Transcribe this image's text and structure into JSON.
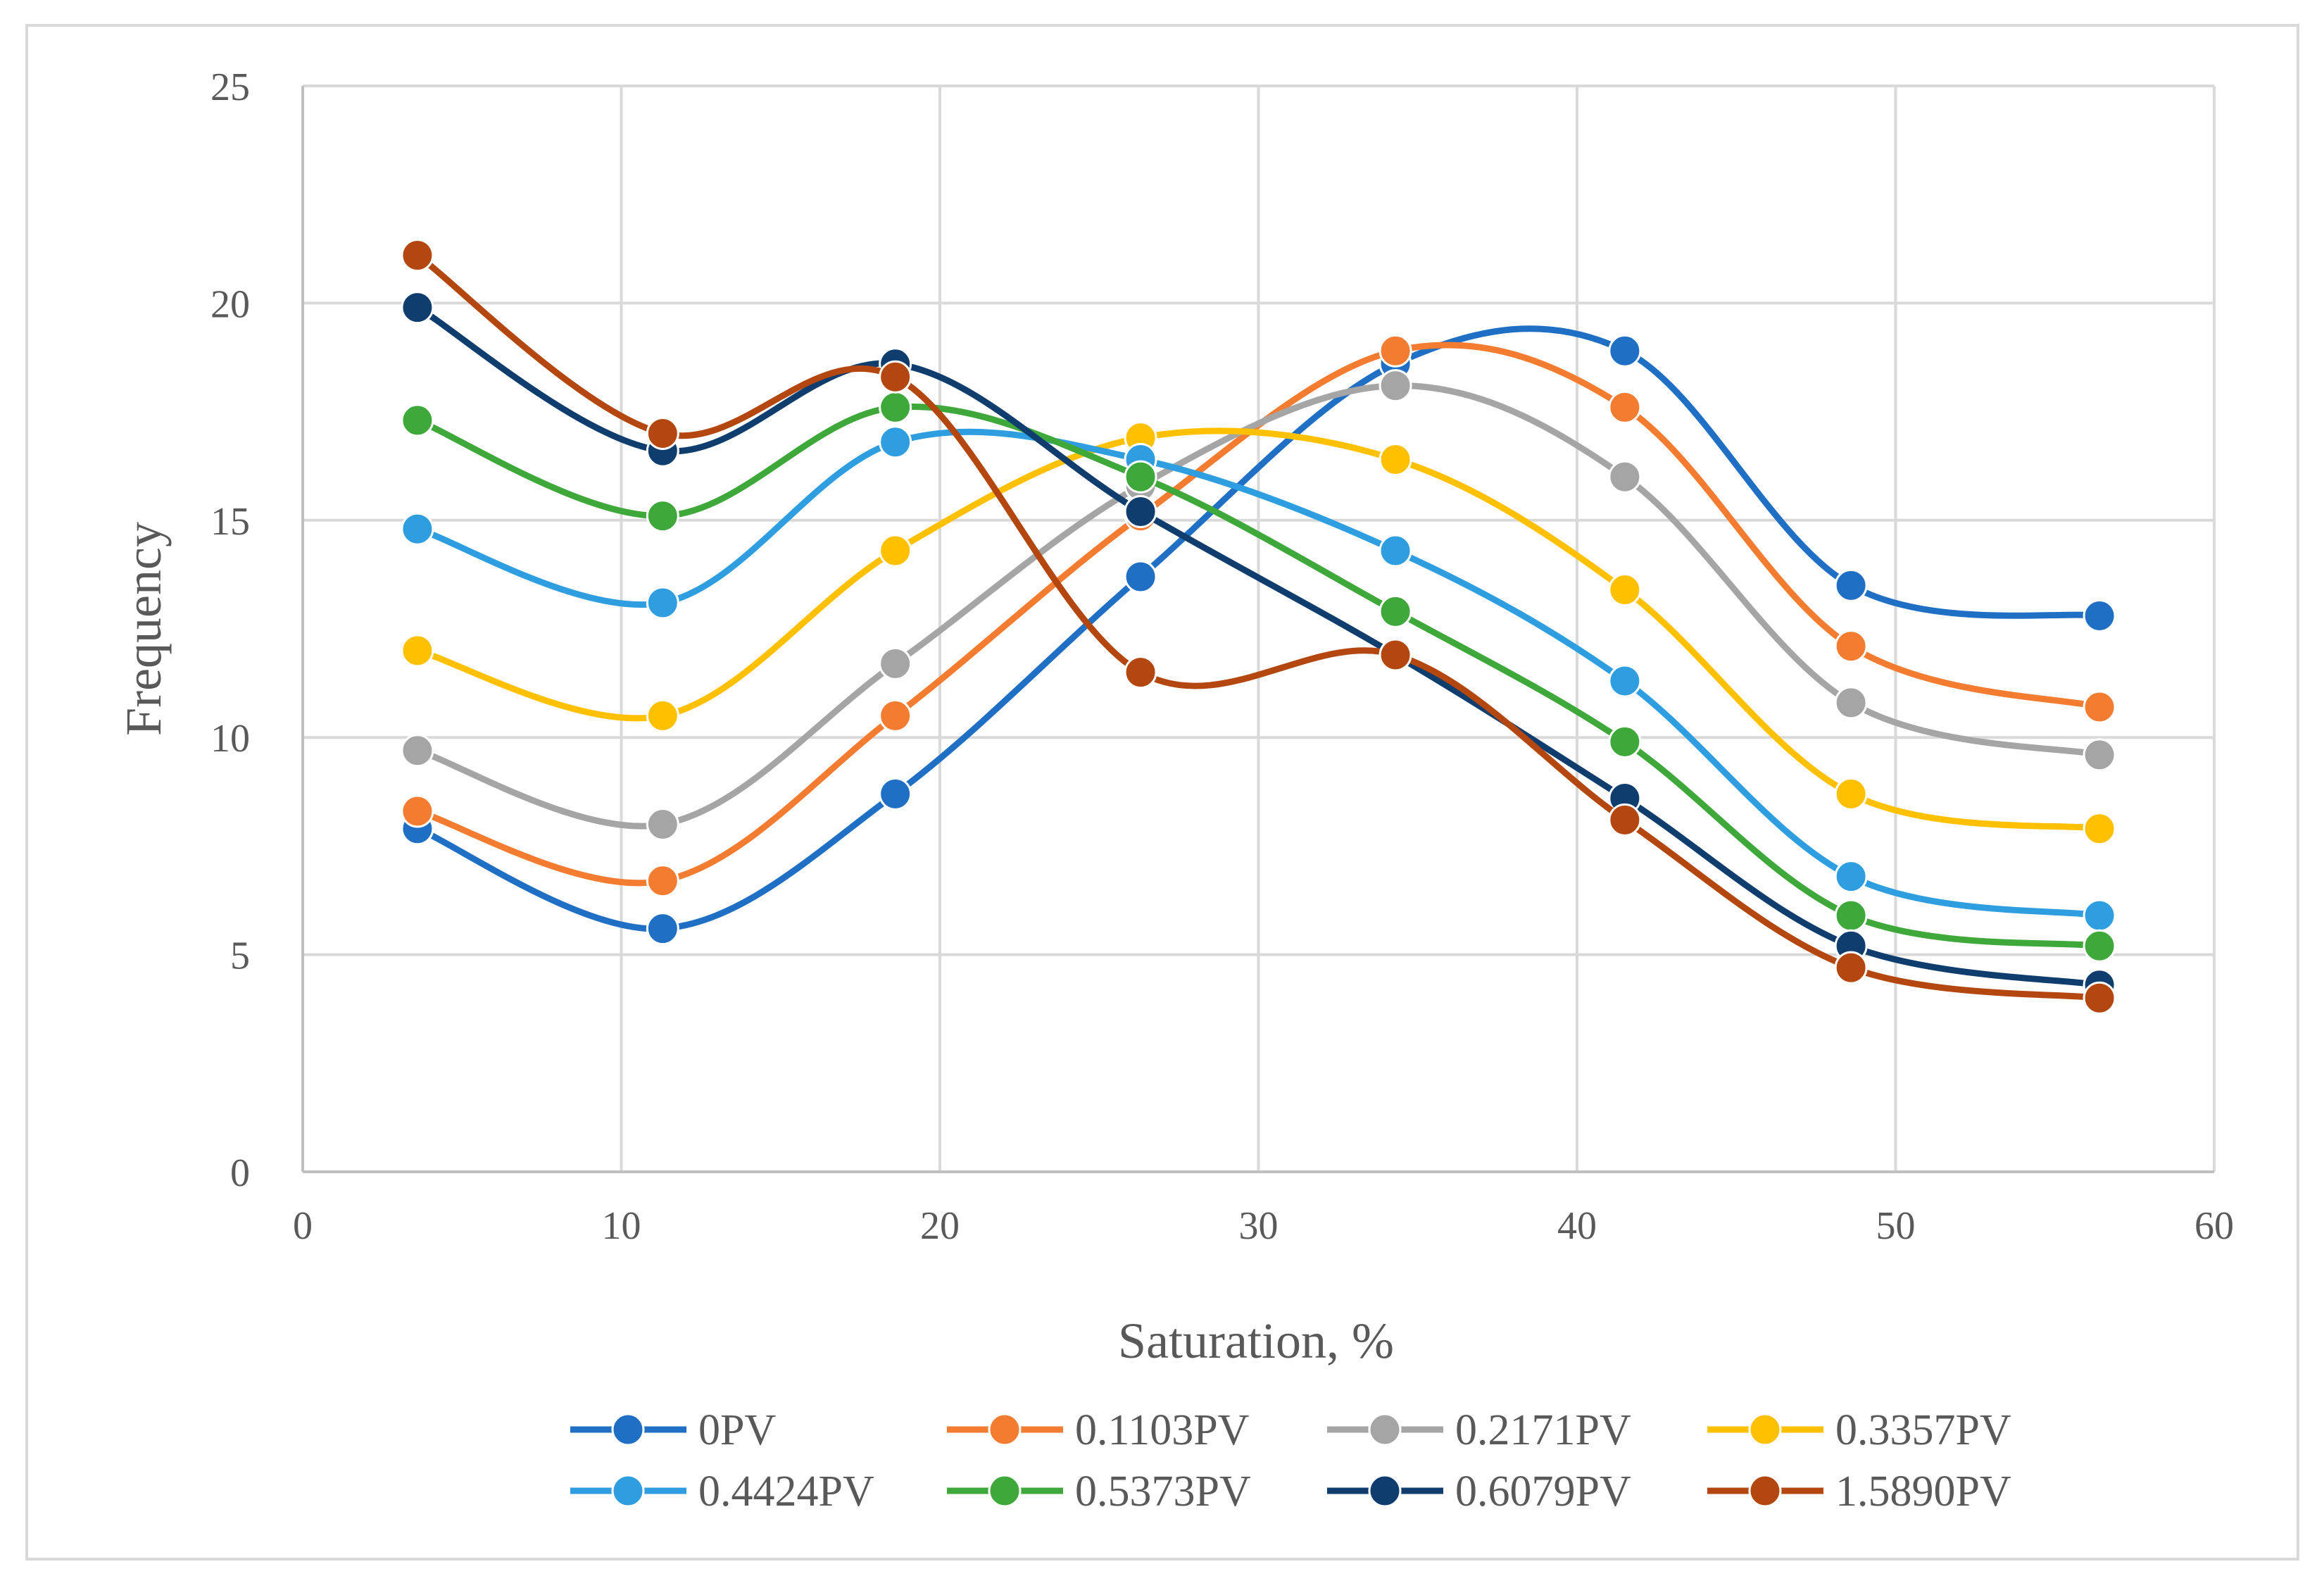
{
  "chart_data": {
    "type": "line",
    "title": "",
    "xlabel": "Saturation, %",
    "ylabel": "Frequency",
    "xlim": [
      0,
      60
    ],
    "ylim": [
      0,
      25
    ],
    "xticks": [
      "0",
      "10",
      "20",
      "30",
      "40",
      "50",
      "60"
    ],
    "yticks": [
      "0",
      "5",
      "10",
      "15",
      "20",
      "25"
    ],
    "grid": true,
    "smooth": true,
    "legend_position": "bottom",
    "x": [
      3.6,
      11.3,
      18.6,
      26.3,
      34.3,
      41.5,
      48.6,
      56.4
    ],
    "series": [
      {
        "name": "0PV",
        "color": "#1f6fc5",
        "values": [
          7.9,
          5.6,
          8.7,
          13.7,
          18.6,
          18.9,
          13.5,
          12.8
        ]
      },
      {
        "name": "0.1103PV",
        "color": "#f47c30",
        "values": [
          8.3,
          6.7,
          10.5,
          15.1,
          18.9,
          17.6,
          12.1,
          10.7
        ]
      },
      {
        "name": "0.2171PV",
        "color": "#a5a5a5",
        "values": [
          9.7,
          8.0,
          11.7,
          15.8,
          18.1,
          16.0,
          10.8,
          9.6
        ]
      },
      {
        "name": "0.3357PV",
        "color": "#ffc000",
        "values": [
          12.0,
          10.5,
          14.3,
          16.9,
          16.4,
          13.4,
          8.7,
          7.9
        ]
      },
      {
        "name": "0.4424PV",
        "color": "#2e9ee0",
        "values": [
          14.8,
          13.1,
          16.8,
          16.4,
          14.3,
          11.3,
          6.8,
          5.9
        ]
      },
      {
        "name": "0.5373PV",
        "color": "#3fa83a",
        "values": [
          17.3,
          15.1,
          17.6,
          16.0,
          12.9,
          9.9,
          5.9,
          5.2
        ]
      },
      {
        "name": "0.6079PV",
        "color": "#0f3d6e",
        "values": [
          19.9,
          16.6,
          18.6,
          15.2,
          11.9,
          8.6,
          5.2,
          4.3
        ]
      },
      {
        "name": "1.5890PV",
        "color": "#b3470f",
        "values": [
          21.1,
          17.0,
          18.3,
          11.5,
          11.9,
          8.1,
          4.7,
          4.0
        ]
      }
    ]
  }
}
